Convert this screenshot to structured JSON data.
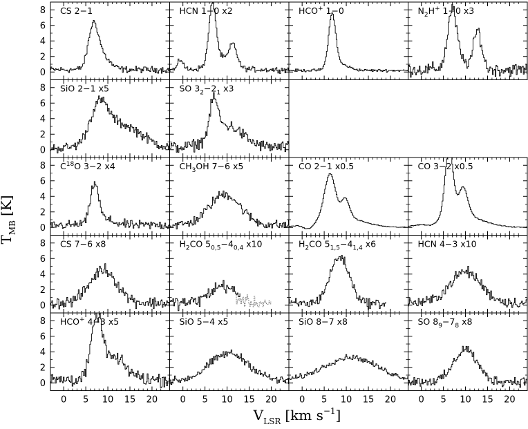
{
  "chart_data": {
    "type": "line",
    "grid": false,
    "xlim": [
      -3,
      24
    ],
    "ylim": [
      -1,
      9
    ],
    "xticks": [
      "0",
      "5",
      "10",
      "15",
      "20"
    ],
    "yticks": [
      "0",
      "2",
      "4",
      "6",
      "8"
    ],
    "xlabel": {
      "main": "V",
      "sub": "LSR",
      "unit": "[km s",
      "exp": "−1",
      "close": "]"
    },
    "ylabel": {
      "main": "T",
      "sub": "MB",
      "unit": "[K]"
    },
    "panels": [
      {
        "row": 0,
        "col": 0,
        "label": [
          [
            "CS 2−1",
            ""
          ]
        ],
        "lines": [
          {
            "baseline": 0.3,
            "noise": 0.35,
            "comps": [
              [
                6.7,
                1.1,
                5.0
              ],
              [
                8.5,
                1.8,
                1.8
              ]
            ],
            "style": "solid"
          }
        ]
      },
      {
        "row": 0,
        "col": 1,
        "label": [
          [
            "HCN 1−0 x2",
            ""
          ]
        ],
        "lines": [
          {
            "baseline": 0.3,
            "noise": 0.3,
            "comps": [
              [
                -0.5,
                0.6,
                1.3
              ],
              [
                6.7,
                0.8,
                7.5
              ],
              [
                8.8,
                2.5,
                1.5
              ],
              [
                11.4,
                0.8,
                2.5
              ]
            ],
            "style": "solid"
          }
        ]
      },
      {
        "row": 0,
        "col": 2,
        "label": [
          [
            "HCO",
            ""
          ],
          [
            "+",
            "sup"
          ],
          [
            " 1−0",
            ""
          ]
        ],
        "lines": [
          {
            "baseline": 0.2,
            "noise": 0.15,
            "comps": [
              [
                6.8,
                0.8,
                6.8
              ],
              [
                8.5,
                2.0,
                0.8
              ]
            ],
            "style": "solid"
          }
        ]
      },
      {
        "row": 0,
        "col": 3,
        "label": [
          [
            "N",
            ""
          ],
          [
            "2",
            "sub"
          ],
          [
            "H",
            ""
          ],
          [
            "+",
            "sup"
          ],
          [
            " 1−0 x3",
            ""
          ]
        ],
        "lines": [
          {
            "baseline": 0.3,
            "noise": 0.7,
            "comps": [
              [
                7.0,
                1.0,
                7.0
              ],
              [
                12.8,
                0.9,
                4.8
              ],
              [
                8.5,
                2.5,
                1.0
              ]
            ],
            "style": "solid"
          }
        ]
      },
      {
        "row": 1,
        "col": 0,
        "label": [
          [
            "SiO 2−1 x5",
            ""
          ]
        ],
        "lines": [
          {
            "baseline": 0.2,
            "noise": 0.55,
            "comps": [
              [
                8.0,
                2.0,
                4.5
              ],
              [
                13.0,
                4.5,
                3.0
              ]
            ],
            "style": "solid"
          }
        ]
      },
      {
        "row": 1,
        "col": 1,
        "label": [
          [
            "SO 3",
            ""
          ],
          [
            "2",
            "sub"
          ],
          [
            "−2",
            ""
          ],
          [
            "1",
            "sub"
          ],
          [
            " x3",
            ""
          ]
        ],
        "lines": [
          {
            "baseline": 0.3,
            "noise": 0.65,
            "comps": [
              [
                7.0,
                0.9,
                4.5
              ],
              [
                10.0,
                3.5,
                2.8
              ]
            ],
            "style": "solid"
          }
        ]
      },
      {
        "row": 2,
        "col": 0,
        "label": [
          [
            "C",
            ""
          ],
          [
            "18",
            "sup"
          ],
          [
            "O 3−2 x4",
            ""
          ]
        ],
        "lines": [
          {
            "baseline": 0.3,
            "noise": 0.5,
            "comps": [
              [
                7.0,
                0.9,
                4.8
              ],
              [
                8.5,
                2.5,
                0.8
              ]
            ],
            "style": "solid"
          }
        ]
      },
      {
        "row": 2,
        "col": 1,
        "label": [
          [
            "CH",
            ""
          ],
          [
            "3",
            "sub"
          ],
          [
            "OH 7−6 x5",
            ""
          ]
        ],
        "lines": [
          {
            "baseline": 0.3,
            "noise": 0.55,
            "comps": [
              [
                9.5,
                3.5,
                4.0
              ]
            ],
            "style": "solid"
          }
        ]
      },
      {
        "row": 2,
        "col": 2,
        "label": [
          [
            "CO 2−1 x0.5",
            ""
          ]
        ],
        "lines": [
          {
            "baseline": 0.0,
            "noise": 0.05,
            "comps": [
              [
                6.3,
                1.2,
                5.5
              ],
              [
                9.8,
                0.9,
                2.3
              ],
              [
                8.0,
                5.0,
                1.5
              ],
              [
                1.5,
                1.2,
                -0.8
              ]
            ],
            "style": "solid"
          }
        ]
      },
      {
        "row": 2,
        "col": 3,
        "label": [
          [
            "CO 3−2 x0.5",
            ""
          ]
        ],
        "lines": [
          {
            "baseline": 0.0,
            "noise": 0.05,
            "comps": [
              [
                6.3,
                0.9,
                8.5
              ],
              [
                9.5,
                1.0,
                3.5
              ],
              [
                8.0,
                5.0,
                1.8
              ],
              [
                2.5,
                1.5,
                -0.6
              ]
            ],
            "style": "solid"
          }
        ]
      },
      {
        "row": 3,
        "col": 0,
        "label": [
          [
            "CS 7−6 x8",
            ""
          ]
        ],
        "lines": [
          {
            "baseline": 0.3,
            "noise": 0.65,
            "comps": [
              [
                9.0,
                3.0,
                4.3
              ]
            ],
            "style": "solid"
          }
        ]
      },
      {
        "row": 3,
        "col": 1,
        "label": [
          [
            "H",
            ""
          ],
          [
            "2",
            "sub"
          ],
          [
            "CO 5",
            ""
          ],
          [
            "0,5",
            "sub"
          ],
          [
            "−4",
            ""
          ],
          [
            "0,4",
            "sub"
          ],
          [
            " x10",
            ""
          ]
        ],
        "lines": [
          {
            "baseline": 0.3,
            "noise": 0.7,
            "comps": [
              [
                9.0,
                2.8,
                2.2
              ]
            ],
            "style": "solid",
            "xmax": 13
          },
          {
            "baseline": 0.3,
            "noise": 0.6,
            "comps": [
              [
                10.0,
                2.5,
                0.8
              ]
            ],
            "style": "dotted",
            "xmin": 12,
            "xmax": 20
          }
        ]
      },
      {
        "row": 3,
        "col": 2,
        "label": [
          [
            "H",
            ""
          ],
          [
            "2",
            "sub"
          ],
          [
            "CO 5",
            ""
          ],
          [
            "1,5",
            "sub"
          ],
          [
            "−4",
            ""
          ],
          [
            "1,4",
            "sub"
          ],
          [
            " x6",
            ""
          ]
        ],
        "lines": [
          {
            "baseline": 0.2,
            "noise": 0.55,
            "comps": [
              [
                8.5,
                2.2,
                6.0
              ]
            ],
            "style": "solid",
            "xmin": -3,
            "xmax": 19
          }
        ]
      },
      {
        "row": 3,
        "col": 3,
        "label": [
          [
            "HCN 4−3 x10",
            ""
          ]
        ],
        "lines": [
          {
            "baseline": 0.3,
            "noise": 0.6,
            "comps": [
              [
                10.0,
                3.5,
                4.0
              ]
            ],
            "style": "solid"
          }
        ]
      },
      {
        "row": 4,
        "col": 0,
        "label": [
          [
            "HCO",
            ""
          ],
          [
            "+",
            "sup"
          ],
          [
            " 4−3 x5",
            ""
          ]
        ],
        "lines": [
          {
            "baseline": 0.4,
            "noise": 0.75,
            "comps": [
              [
                7.5,
                1.2,
                7.0
              ],
              [
                11.0,
                3.0,
                2.8
              ]
            ],
            "style": "solid"
          }
        ]
      },
      {
        "row": 4,
        "col": 1,
        "label": [
          [
            "SiO 5−4 x5",
            ""
          ]
        ],
        "lines": [
          {
            "baseline": 0.2,
            "noise": 0.45,
            "comps": [
              [
                10.5,
                4.5,
                3.6
              ]
            ],
            "style": "solid"
          }
        ]
      },
      {
        "row": 4,
        "col": 2,
        "label": [
          [
            "SiO 8−7 x8",
            ""
          ]
        ],
        "lines": [
          {
            "baseline": 0.3,
            "noise": 0.3,
            "comps": [
              [
                11.0,
                6.0,
                3.0
              ]
            ],
            "style": "solid"
          }
        ]
      },
      {
        "row": 4,
        "col": 3,
        "label": [
          [
            "SO 8",
            ""
          ],
          [
            "9",
            "sub"
          ],
          [
            "−7",
            ""
          ],
          [
            "8",
            "sub"
          ],
          [
            " x8",
            ""
          ]
        ],
        "lines": [
          {
            "baseline": 0.2,
            "noise": 0.55,
            "comps": [
              [
                10.0,
                2.5,
                4.2
              ]
            ],
            "style": "solid"
          }
        ]
      }
    ]
  }
}
